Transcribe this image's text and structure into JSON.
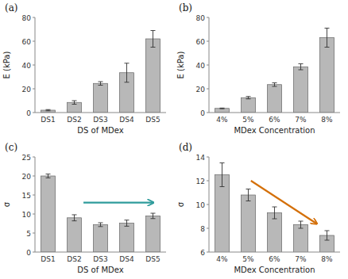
{
  "chart_data": [
    {
      "type": "bar",
      "title": "(a)",
      "categories": [
        "DS1",
        "DS2",
        "DS3",
        "DS4",
        "DS5"
      ],
      "values": [
        2.0,
        8.5,
        24.5,
        33.5,
        62.0
      ],
      "errors": [
        0.5,
        1.5,
        1.5,
        8.0,
        7.0
      ],
      "ylabel": "E (kPa)",
      "xlabel": "DS of MDex",
      "ylim": [
        0,
        80
      ],
      "yticks": [
        0,
        20,
        40,
        60,
        80
      ],
      "color": "#b8b8b8",
      "grid": false
    },
    {
      "type": "bar",
      "title": "(b)",
      "categories": [
        "4%",
        "5%",
        "6%",
        "7%",
        "8%"
      ],
      "values": [
        3.5,
        12.5,
        23.5,
        38.5,
        63.0
      ],
      "errors": [
        0.3,
        1.0,
        1.5,
        2.5,
        8.0
      ],
      "ylabel": "E (kPa)",
      "xlabel": "MDex Concentration",
      "ylim": [
        0,
        80
      ],
      "yticks": [
        0,
        20,
        40,
        60,
        80
      ],
      "color": "#b8b8b8",
      "grid": false
    },
    {
      "type": "bar",
      "title": "(c)",
      "categories": [
        "DS1",
        "DS2",
        "DS3",
        "DS4",
        "DS5"
      ],
      "values": [
        20.0,
        9.0,
        7.2,
        7.6,
        9.5
      ],
      "errors": [
        0.5,
        0.8,
        0.5,
        0.8,
        0.7
      ],
      "ylabel": "σ",
      "xlabel": "DS of MDex",
      "ylim": [
        0,
        25
      ],
      "yticks": [
        0,
        5,
        10,
        15,
        20,
        25
      ],
      "color": "#b8b8b8",
      "grid": false,
      "annotations": [
        {
          "type": "arrow",
          "color": "#2e9b9b"
        }
      ]
    },
    {
      "type": "bar",
      "title": "(d)",
      "categories": [
        "4%",
        "5%",
        "6%",
        "7%",
        "8%"
      ],
      "values": [
        12.5,
        10.8,
        9.3,
        8.3,
        7.4
      ],
      "errors": [
        1.0,
        0.5,
        0.5,
        0.3,
        0.4
      ],
      "ylabel": "σ",
      "xlabel": "MDex Concentration",
      "ylim": [
        6,
        14
      ],
      "yticks": [
        6,
        8,
        10,
        12,
        14
      ],
      "color": "#b8b8b8",
      "grid": false,
      "annotations": [
        {
          "type": "arrow",
          "color": "#d4700a"
        }
      ]
    }
  ]
}
